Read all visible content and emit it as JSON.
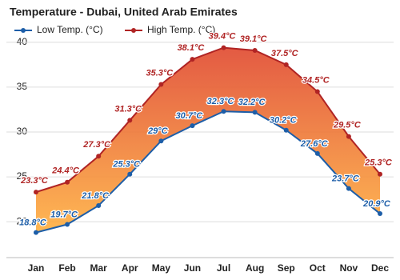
{
  "chart_data": {
    "type": "line",
    "title": "Temperature - Dubai, United Arab Emirates",
    "categories": [
      "Jan",
      "Feb",
      "Mar",
      "Apr",
      "May",
      "Jun",
      "Jul",
      "Aug",
      "Sep",
      "Oct",
      "Nov",
      "Dec"
    ],
    "series": [
      {
        "name": "Low Temp. (°C)",
        "color": "#1d5ea8",
        "values": [
          18.8,
          19.7,
          21.8,
          25.3,
          29,
          30.7,
          32.3,
          32.2,
          30.2,
          27.6,
          23.7,
          20.9
        ],
        "value_labels": [
          "18.8°C",
          "19.7°C",
          "21.8°C",
          "25.3°C",
          "29°C",
          "30.7°C",
          "32.3°C",
          "32.2°C",
          "30.2°C",
          "27.6°C",
          "23.7°C",
          "20.9°C"
        ]
      },
      {
        "name": "High Temp. (°C)",
        "color": "#b02424",
        "values": [
          23.3,
          24.4,
          27.3,
          31.3,
          35.3,
          38.1,
          39.4,
          39.1,
          37.5,
          34.5,
          29.5,
          25.3
        ],
        "value_labels": [
          "23.3°C",
          "24.4°C",
          "27.3°C",
          "31.3°C",
          "35.3°C",
          "38.1°C",
          "39.4°C",
          "39.1°C",
          "37.5°C",
          "34.5°C",
          "29.5°C",
          "25.3°C"
        ]
      }
    ],
    "ylim": [
      16,
      40.7
    ],
    "yticks": [
      20,
      25,
      30,
      35,
      40
    ],
    "grid": true
  }
}
